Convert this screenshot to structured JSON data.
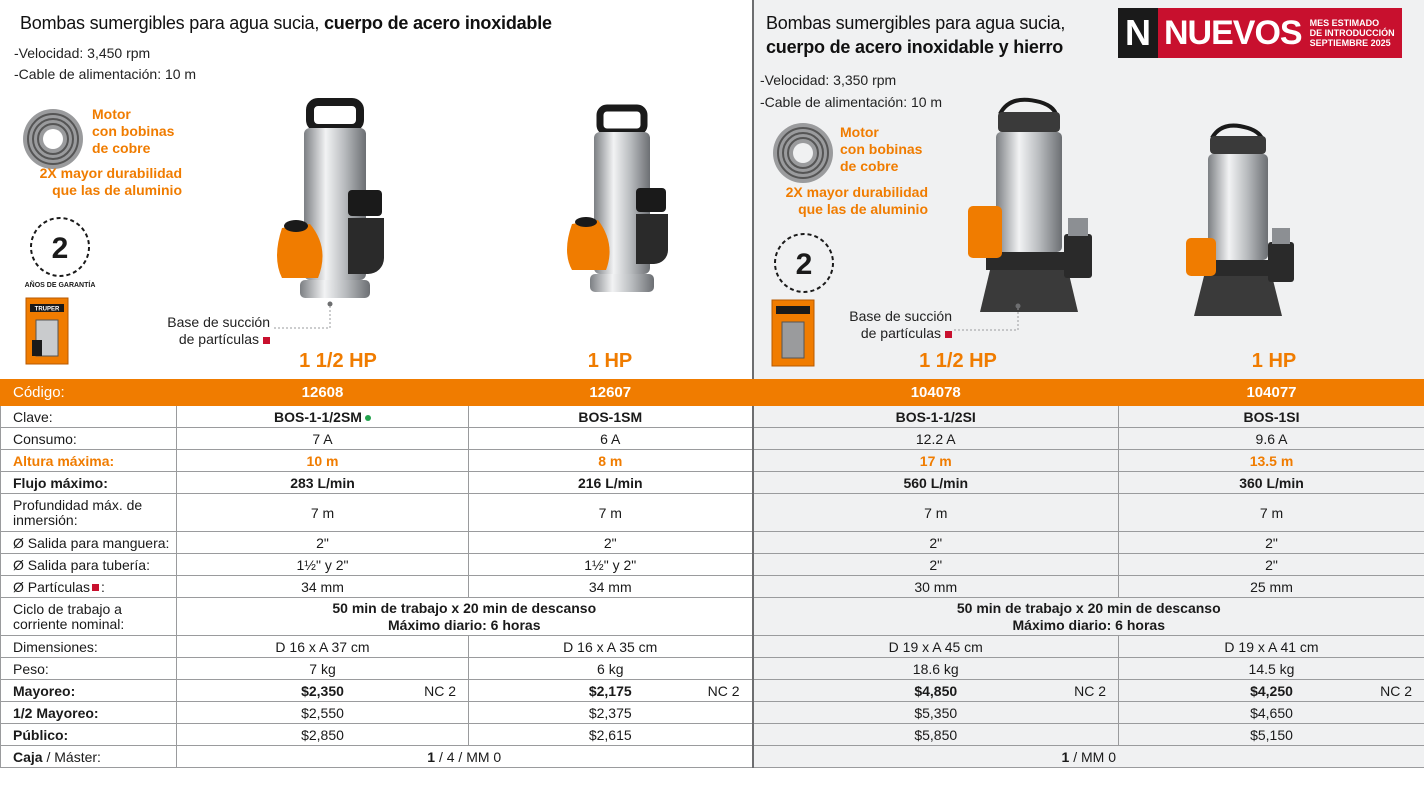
{
  "left": {
    "title_normal": "Bombas sumergibles para agua sucia, ",
    "title_bold": "cuerpo de acero inoxidable",
    "velocidad": "-Velocidad: 3,450 rpm",
    "cable": "-Cable de alimentación: 10 m",
    "feature_motor": [
      "Motor",
      "con bobinas",
      "de cobre"
    ],
    "feature_durabilidad": [
      "2X mayor durabilidad",
      "que las de aluminio"
    ],
    "warranty_years": "2",
    "warranty_text": "AÑOS DE GARANTÍA",
    "base_note": [
      "Base de succión",
      "de partículas"
    ],
    "hp_a": "1 1/2 HP",
    "hp_b": "1 HP"
  },
  "right": {
    "title_line1": "Bombas sumergibles para agua sucia,",
    "title_line2": "cuerpo de acero inoxidable y hierro",
    "velocidad": "-Velocidad: 3,350 rpm",
    "cable": "-Cable de alimentación: 10 m",
    "feature_motor": [
      "Motor",
      "con bobinas",
      "de cobre"
    ],
    "feature_durabilidad": [
      "2X mayor durabilidad",
      "que las de aluminio"
    ],
    "warranty_years": "2",
    "base_note": [
      "Base de succión",
      "de partículas"
    ],
    "hp_a": "1 1/2 HP",
    "hp_b": "1 HP"
  },
  "badge": {
    "letter": "N",
    "word": "NUEVOS",
    "date_lines": [
      "MES ESTIMADO",
      "DE INTRODUCCIÓN",
      "SEPTIEMBRE 2025"
    ]
  },
  "brand_text": "TRUPER",
  "table": {
    "labels": {
      "codigo": "Código:",
      "clave": "Clave:",
      "consumo": "Consumo:",
      "altura": "Altura máxima:",
      "flujo": "Flujo máximo:",
      "profundidad": "Profundidad máx. de inmersión:",
      "salida_manguera": "Ø Salida para manguera:",
      "salida_tuberia": "Ø Salida para tubería:",
      "particulas": "Ø Partículas",
      "ciclo": "Ciclo de trabajo a corriente nominal:",
      "dimensiones": "Dimensiones:",
      "peso": "Peso:",
      "mayoreo": "Mayoreo:",
      "medio_mayoreo": "1/2 Mayoreo:",
      "publico": "Público:",
      "caja_bold": "Caja",
      "caja_rest": " / Máster:"
    },
    "products": [
      {
        "codigo": "12608",
        "clave": "BOS-1-1/2SM",
        "consumo": "7 A",
        "altura": "10 m",
        "flujo": "283 L/min",
        "profundidad": "7 m",
        "manguera": "2\"",
        "tuberia": "1½\" y 2\"",
        "particulas": "34 mm",
        "dimensiones": "D 16 x A 37 cm",
        "peso": "7 kg",
        "mayoreo": "$2,350",
        "nc": "NC 2",
        "medio": "$2,550",
        "publico": "$2,850"
      },
      {
        "codigo": "12607",
        "clave": "BOS-1SM",
        "consumo": "6 A",
        "altura": "8 m",
        "flujo": "216 L/min",
        "profundidad": "7 m",
        "manguera": "2\"",
        "tuberia": "1½\" y 2\"",
        "particulas": "34 mm",
        "dimensiones": "D 16 x A 35 cm",
        "peso": "6 kg",
        "mayoreo": "$2,175",
        "nc": "NC 2",
        "medio": "$2,375",
        "publico": "$2,615"
      },
      {
        "codigo": "104078",
        "clave": "BOS-1-1/2SI",
        "consumo": "12.2 A",
        "altura": "17 m",
        "flujo": "560 L/min",
        "profundidad": "7 m",
        "manguera": "2\"",
        "tuberia": "2\"",
        "particulas": "30 mm",
        "dimensiones": "D 19 x A 45 cm",
        "peso": "18.6 kg",
        "mayoreo": "$4,850",
        "nc": "NC 2",
        "medio": "$5,350",
        "publico": "$5,850"
      },
      {
        "codigo": "104077",
        "clave": "BOS-1SI",
        "consumo": "9.6 A",
        "altura": "13.5 m",
        "flujo": "360 L/min",
        "profundidad": "7 m",
        "manguera": "2\"",
        "tuberia": "2\"",
        "particulas": "25 mm",
        "dimensiones": "D 19 x A 41 cm",
        "peso": "14.5 kg",
        "mayoreo": "$4,250",
        "nc": "NC 2",
        "medio": "$4,650",
        "publico": "$5,150"
      }
    ],
    "ciclo_line1": "50 min de trabajo x 20 min de descanso",
    "ciclo_line2": "Máximo diario: 6 horas",
    "caja_left_bold": "1",
    "caja_left_rest": " / 4 / MM 0",
    "caja_right_bold": "1",
    "caja_right_rest": " / MM 0"
  },
  "colors": {
    "accent": "#f07c00",
    "badge_red": "#c8102e",
    "panel_gray": "#f0f1f2"
  }
}
